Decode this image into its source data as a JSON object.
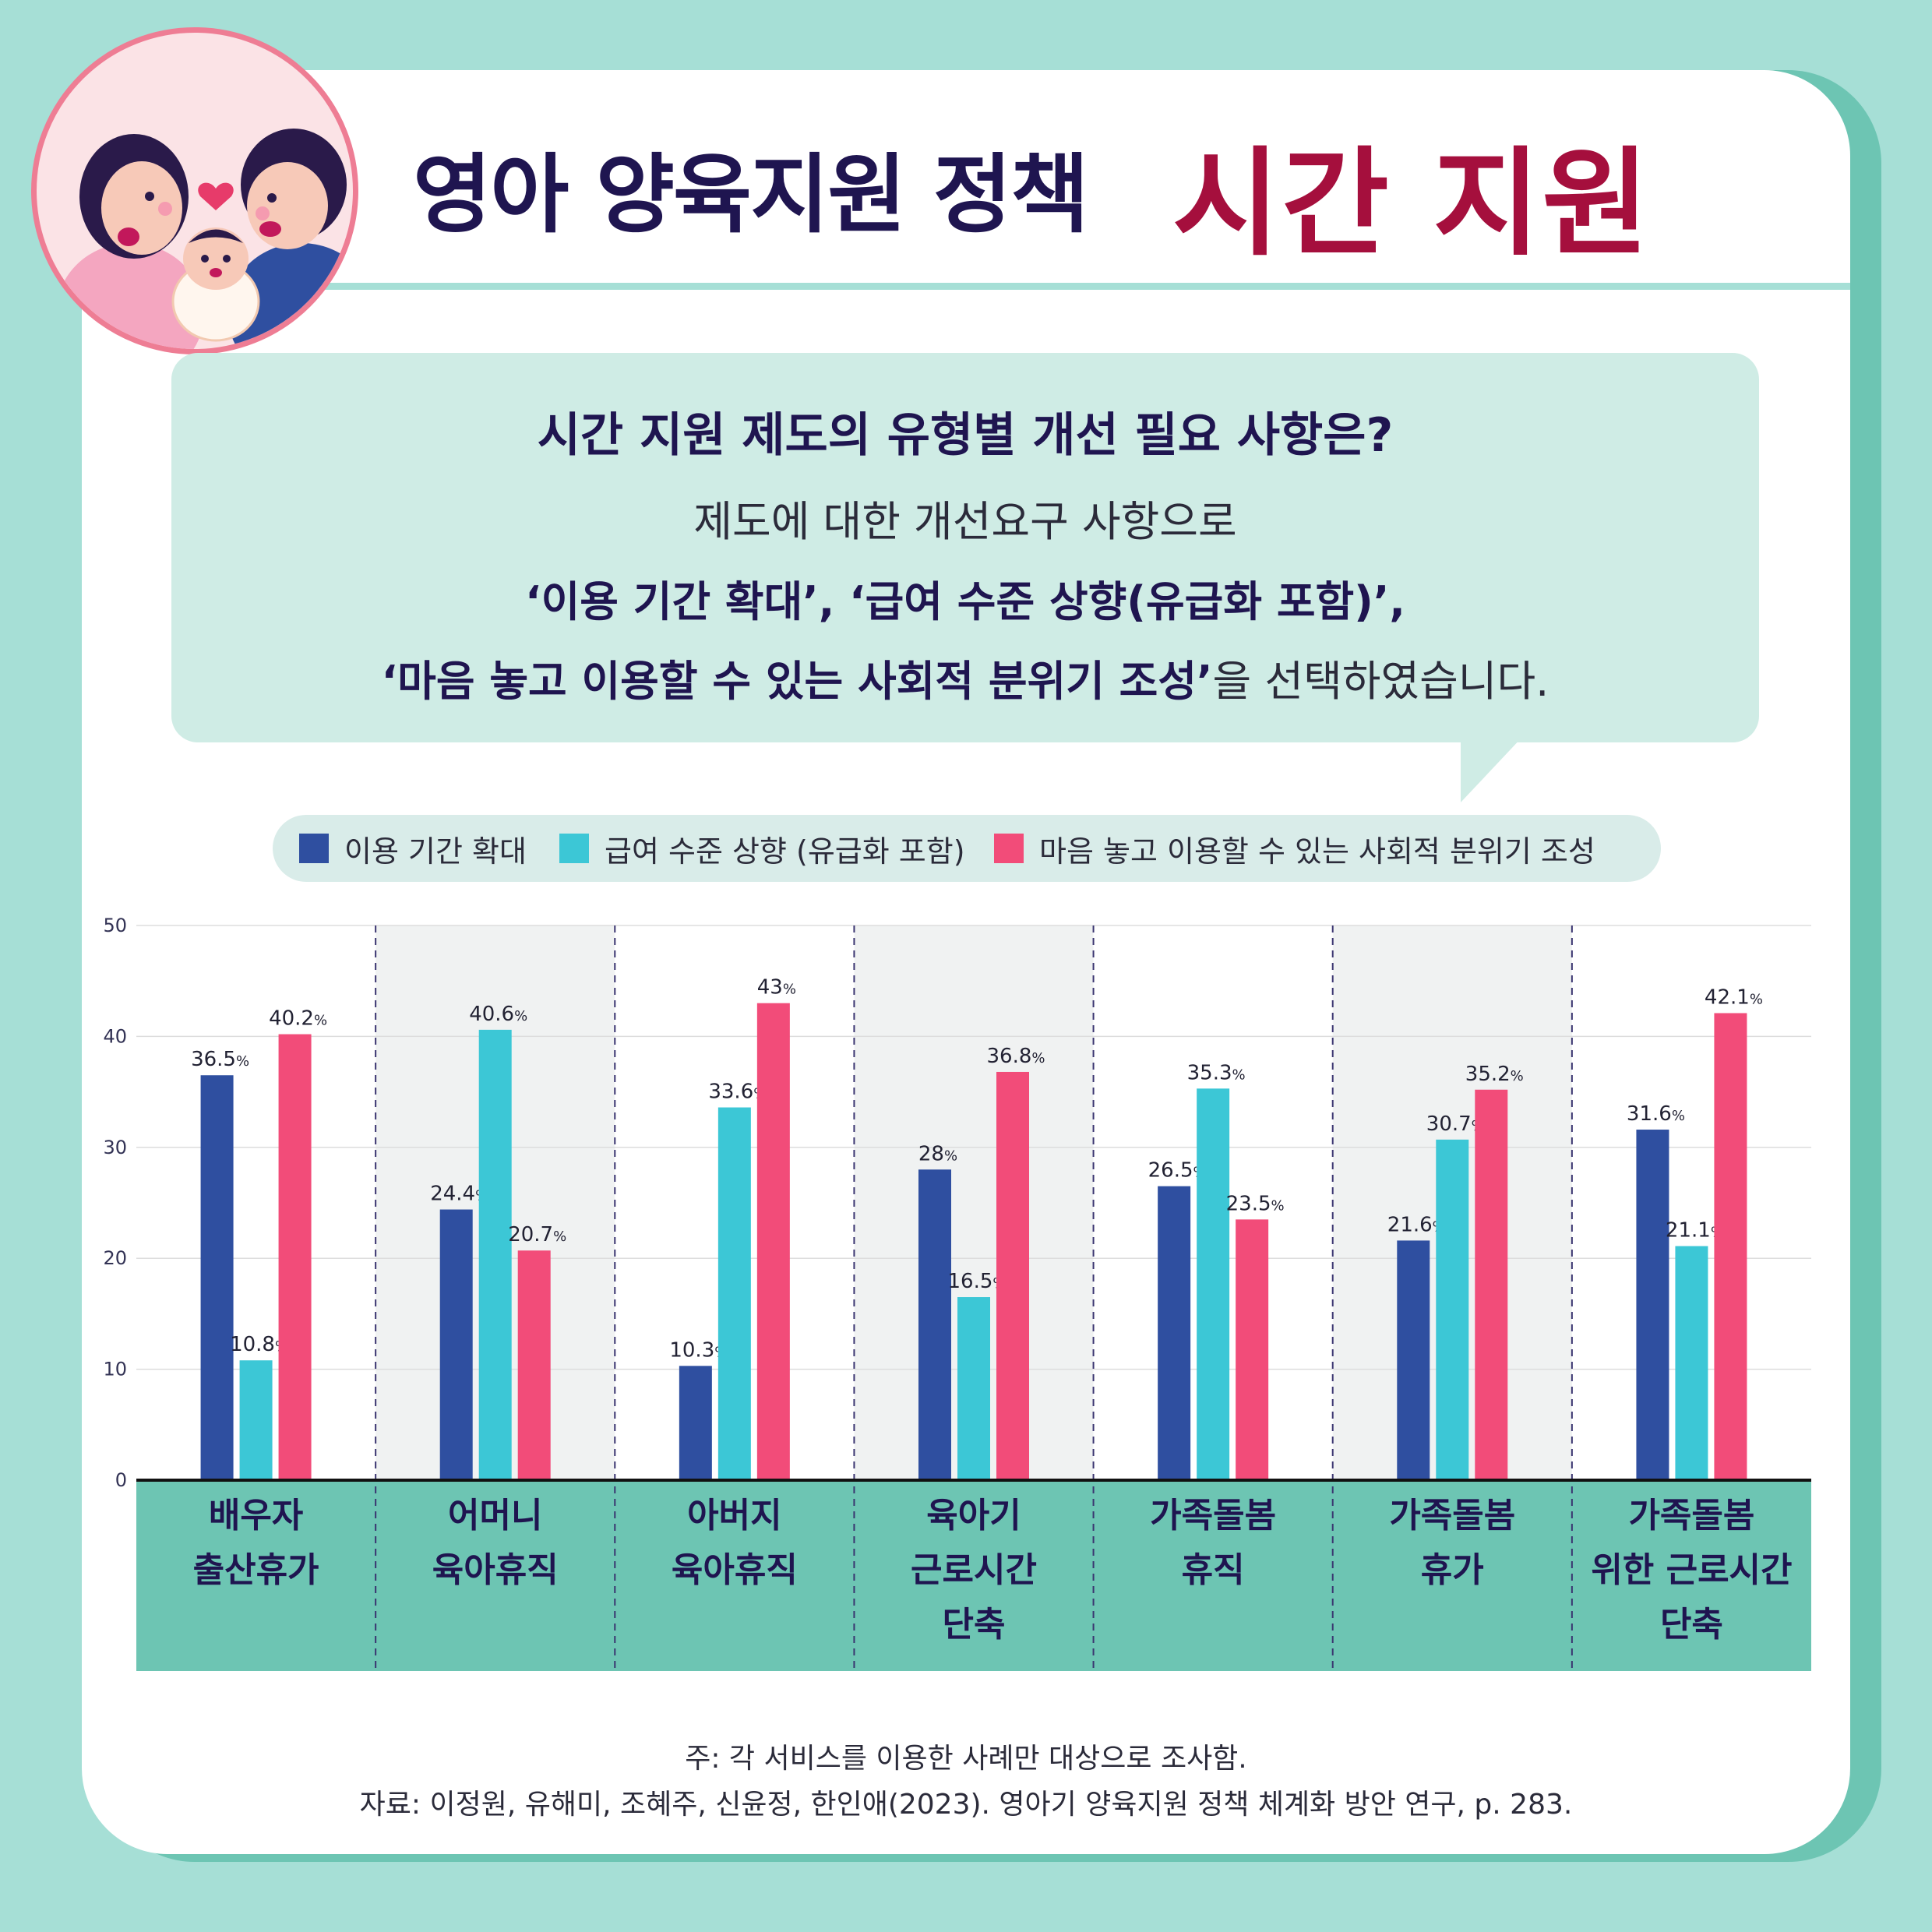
{
  "header": {
    "title_main": "영아 양육지원 정책",
    "title_accent": "시간 지원"
  },
  "question": {
    "title": "시간 지원 제도의 유형별 개선 필요 사항은?",
    "line1": "제도에 대한 개선요구 사항으로",
    "line2": "‘이용 기간 확대’, ‘급여 수준 상향(유급화 포함)’,",
    "line3_bold": "‘마음 놓고 이용할 수 있는 사회적 분위기 조성’",
    "line3_rest": "을 선택하였습니다."
  },
  "colors": {
    "series1": "#2f4fa0",
    "series2": "#3cc7d6",
    "series3": "#f24c79",
    "category_band": "#6dc5b3",
    "category_text": "#1f1550",
    "shade": "#f0f2f2"
  },
  "chart_data": {
    "type": "bar",
    "categories": [
      [
        "배우자",
        "출산휴가"
      ],
      [
        "어머니",
        "육아휴직"
      ],
      [
        "아버지",
        "육아휴직"
      ],
      [
        "육아기",
        "근로시간",
        "단축"
      ],
      [
        "가족돌봄",
        "휴직"
      ],
      [
        "가족돌봄",
        "휴가"
      ],
      [
        "가족돌봄",
        "위한 근로시간",
        "단축"
      ]
    ],
    "series": [
      {
        "name": "이용 기간 확대",
        "values": [
          36.5,
          24.4,
          10.3,
          28,
          26.5,
          21.6,
          31.6
        ]
      },
      {
        "name": "급여 수준 상향 (유급화 포함)",
        "values": [
          10.8,
          40.6,
          33.6,
          16.5,
          35.3,
          30.7,
          21.1
        ]
      },
      {
        "name": "마음 놓고 이용할 수 있는 사회적 분위기 조성",
        "values": [
          40.2,
          20.7,
          43,
          36.8,
          23.5,
          35.2,
          42.1
        ]
      }
    ],
    "value_suffix": "%",
    "y_ticks": [
      0,
      10,
      20,
      30,
      40,
      50
    ],
    "ylim": [
      0,
      50
    ],
    "grid": true,
    "legend_position": "top"
  },
  "notes": {
    "note": "주: 각 서비스를 이용한 사례만 대상으로 조사함.",
    "source": "자료: 이정원, 유해미, 조혜주, 신윤정, 한인애(2023). 영아기 양육지원 정책 체계화 방안 연구, p. 283."
  }
}
